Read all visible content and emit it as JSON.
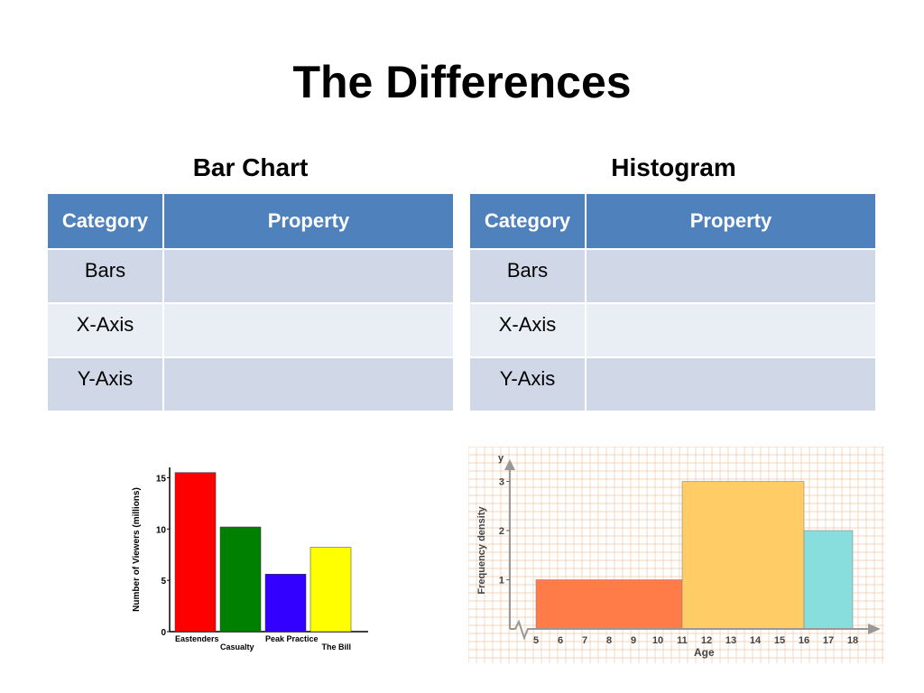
{
  "slide": {
    "title": "The Differences"
  },
  "left": {
    "heading": "Bar Chart",
    "table": {
      "headers": [
        "Category",
        "Property"
      ],
      "rows": [
        [
          "Bars",
          ""
        ],
        [
          "X-Axis",
          ""
        ],
        [
          "Y-Axis",
          ""
        ]
      ]
    }
  },
  "right": {
    "heading": "Histogram",
    "table": {
      "headers": [
        "Category",
        "Property"
      ],
      "rows": [
        [
          "Bars",
          ""
        ],
        [
          "X-Axis",
          ""
        ],
        [
          "Y-Axis",
          ""
        ]
      ]
    }
  },
  "chart_data": [
    {
      "type": "bar",
      "categories": [
        "Eastenders",
        "Casualty",
        "Peak Practice",
        "The Bill"
      ],
      "values": [
        15.5,
        10.2,
        5.6,
        8.2
      ],
      "colors": [
        "#ff0000",
        "#008000",
        "#3300ff",
        "#ffff00"
      ],
      "ylabel": "Number of Viewers (millions)",
      "ylim": [
        0,
        16
      ],
      "yticks": [
        "0",
        "5",
        "10",
        "15"
      ],
      "grid": false
    },
    {
      "type": "bar",
      "variant": "histogram",
      "bins": [
        {
          "from": 5,
          "to": 11,
          "value": 1,
          "color": "#ff7b47"
        },
        {
          "from": 11,
          "to": 16,
          "value": 3,
          "color": "#ffcc66"
        },
        {
          "from": 16,
          "to": 18,
          "value": 2,
          "color": "#88dedd"
        }
      ],
      "xlabel": "Age",
      "ylabel": "Frequency density",
      "yaxis_letter": "y",
      "xticks": [
        "5",
        "6",
        "7",
        "8",
        "9",
        "10",
        "11",
        "12",
        "13",
        "14",
        "15",
        "16",
        "17",
        "18"
      ],
      "yticks": [
        "1",
        "2",
        "3"
      ],
      "ylim": [
        0,
        3.3
      ],
      "grid": true
    }
  ]
}
